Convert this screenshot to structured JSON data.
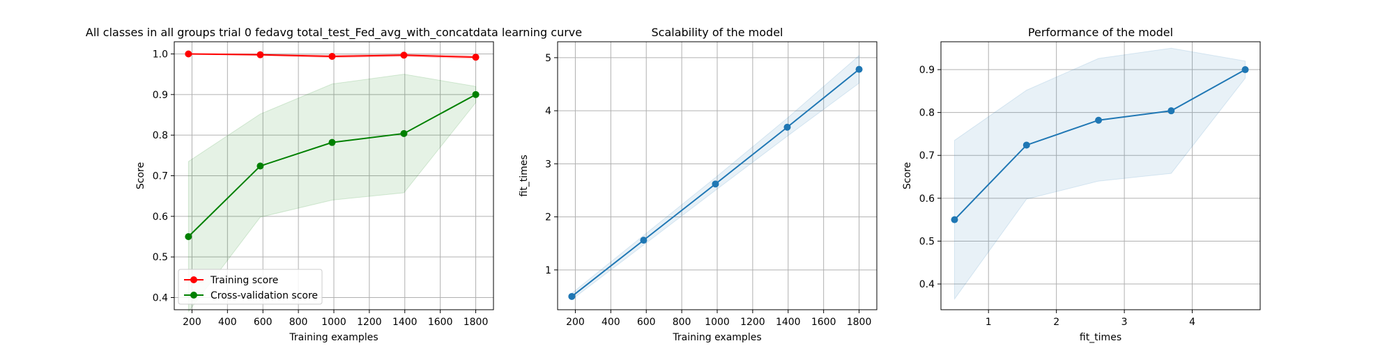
{
  "chart_data": [
    {
      "type": "line",
      "title": "All classes in all groups trial 0 fedavg total_test_Fed_avg_with_concatdata learning curve",
      "xlabel": "Training examples",
      "ylabel": "Score",
      "xlim": [
        100,
        1900
      ],
      "ylim": [
        0.37,
        1.03
      ],
      "x_ticks": [
        200,
        400,
        600,
        800,
        1000,
        1200,
        1400,
        1600,
        1800
      ],
      "y_ticks": [
        0.4,
        0.5,
        0.6,
        0.7,
        0.8,
        0.9,
        1.0
      ],
      "grid": true,
      "legend_position": "lower-left",
      "x": [
        180,
        585,
        990,
        1395,
        1800
      ],
      "series": [
        {
          "name": "Training score",
          "color": "#ff0000",
          "values": [
            1.0,
            0.998,
            0.994,
            0.997,
            0.992
          ],
          "band_lower": [
            0.999,
            0.996,
            0.991,
            0.994,
            0.988
          ],
          "band_upper": [
            1.001,
            1.0,
            0.997,
            1.0,
            0.996
          ],
          "band_color": "#ff0000"
        },
        {
          "name": "Cross-validation score",
          "color": "#008000",
          "values": [
            0.55,
            0.724,
            0.782,
            0.804,
            0.9
          ],
          "band_lower": [
            0.365,
            0.598,
            0.64,
            0.658,
            0.88
          ],
          "band_upper": [
            0.735,
            0.852,
            0.926,
            0.95,
            0.92
          ],
          "band_color": "#008000"
        }
      ]
    },
    {
      "type": "line",
      "title": "Scalability of the model",
      "xlabel": "Training examples",
      "ylabel": "fit_times",
      "xlim": [
        100,
        1900
      ],
      "ylim": [
        0.25,
        5.3
      ],
      "x_ticks": [
        200,
        400,
        600,
        800,
        1000,
        1200,
        1400,
        1600,
        1800
      ],
      "y_ticks": [
        1,
        2,
        3,
        4,
        5
      ],
      "grid": true,
      "x": [
        180,
        585,
        990,
        1395,
        1800
      ],
      "series": [
        {
          "color": "#1f77b4",
          "values": [
            0.5,
            1.56,
            2.62,
            3.69,
            4.78
          ],
          "band_lower": [
            0.44,
            1.47,
            2.5,
            3.52,
            4.52
          ],
          "band_upper": [
            0.56,
            1.65,
            2.74,
            3.86,
            5.04
          ],
          "band_color": "#1f77b4"
        }
      ]
    },
    {
      "type": "line",
      "title": "Performance of the model",
      "xlabel": "fit_times",
      "ylabel": "Score",
      "xlim": [
        0.3,
        5.0
      ],
      "ylim": [
        0.34,
        0.965
      ],
      "x_ticks": [
        1,
        2,
        3,
        4
      ],
      "y_ticks": [
        0.4,
        0.5,
        0.6,
        0.7,
        0.8,
        0.9
      ],
      "grid": true,
      "x": [
        0.5,
        1.56,
        2.62,
        3.69,
        4.78
      ],
      "series": [
        {
          "color": "#1f77b4",
          "values": [
            0.55,
            0.724,
            0.782,
            0.804,
            0.9
          ],
          "band_lower": [
            0.365,
            0.598,
            0.64,
            0.658,
            0.88
          ],
          "band_upper": [
            0.735,
            0.852,
            0.926,
            0.95,
            0.92
          ],
          "band_color": "#1f77b4"
        }
      ]
    }
  ]
}
